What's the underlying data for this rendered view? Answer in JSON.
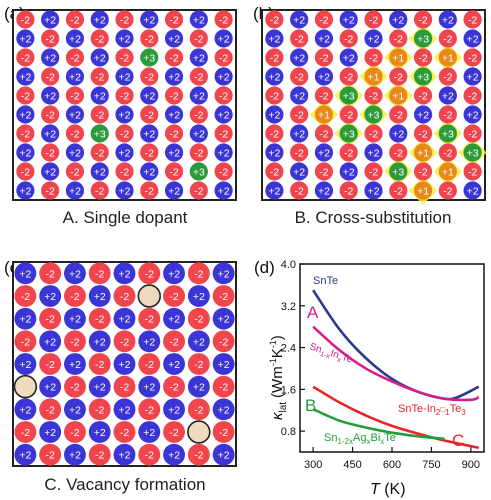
{
  "panels": {
    "a": {
      "tag": "(a)",
      "caption": "A. Single dopant",
      "rows": [
        [
          "-2",
          "+2",
          "-2",
          "+2",
          "-2",
          "+2",
          "-2",
          "+2",
          "-2"
        ],
        [
          "+2",
          "-2",
          "+2",
          "-2",
          "+2",
          "-2",
          "+2",
          "-2",
          "+2"
        ],
        [
          "-2",
          "+2",
          "-2",
          "+2",
          "-2",
          "+3",
          "-2",
          "+2",
          "-2"
        ],
        [
          "+2",
          "-2",
          "+2",
          "-2",
          "+2",
          "-2",
          "+2",
          "-2",
          "+2"
        ],
        [
          "-2",
          "+2",
          "-2",
          "+2",
          "-2",
          "+2",
          "-2",
          "+2",
          "-2"
        ],
        [
          "+2",
          "-2",
          "+2",
          "-2",
          "+2",
          "-2",
          "+2",
          "-2",
          "+2"
        ],
        [
          "-2",
          "+2",
          "-2",
          "+3",
          "-2",
          "+2",
          "-2",
          "+2",
          "-2"
        ],
        [
          "+2",
          "-2",
          "+2",
          "-2",
          "+2",
          "-2",
          "+2",
          "-2",
          "+2"
        ],
        [
          "-2",
          "+2",
          "-2",
          "+2",
          "-2",
          "+2",
          "-2",
          "+3",
          "-2"
        ],
        [
          "+2",
          "-2",
          "+2",
          "-2",
          "+2",
          "-2",
          "+2",
          "-2",
          "+2"
        ]
      ]
    },
    "b": {
      "tag": "(b)",
      "caption": "B. Cross-substitution",
      "rows": [
        [
          "-2",
          "+2",
          "-2",
          "+2",
          "-2",
          "+2",
          "-2",
          "+2",
          "-2"
        ],
        [
          "+2",
          "-2",
          "+2",
          "-2",
          "+2",
          "-2",
          "+3",
          "-2",
          "+2"
        ],
        [
          "-2",
          "+2",
          "-2",
          "+2",
          "-2",
          "+1",
          "-2",
          "+1",
          "-2"
        ],
        [
          "+2",
          "-2",
          "+2",
          "-2",
          "+1",
          "-2",
          "+3",
          "-2",
          "+2"
        ],
        [
          "-2",
          "+2",
          "-2",
          "+3",
          "-2",
          "+1",
          "-2",
          "+2",
          "-2"
        ],
        [
          "+2",
          "-2",
          "+1",
          "-2",
          "+3",
          "-2",
          "+2",
          "-2",
          "+2"
        ],
        [
          "-2",
          "+2",
          "-2",
          "+3",
          "-2",
          "+2",
          "-2",
          "+3",
          "-2"
        ],
        [
          "+2",
          "-2",
          "+2",
          "-2",
          "+2",
          "-2",
          "+1",
          "-2",
          "+3"
        ],
        [
          "-2",
          "+2",
          "-2",
          "+2",
          "-2",
          "+3",
          "-2",
          "+1",
          "-2"
        ],
        [
          "+2",
          "-2",
          "+2",
          "-2",
          "+2",
          "-2",
          "+1",
          "-2",
          "+2"
        ]
      ]
    },
    "c": {
      "tag": "(c)",
      "caption": "C. Vacancy formation",
      "rows": [
        [
          "+2",
          "-2",
          "+2",
          "-2",
          "+2",
          "-2",
          "+2",
          "-2",
          "+2"
        ],
        [
          "-2",
          "+2",
          "-2",
          "+2",
          "-2",
          "",
          "-2",
          "+2",
          "-2"
        ],
        [
          "+2",
          "-2",
          "+2",
          "-2",
          "+2",
          "-2",
          "+2",
          "-2",
          "+2"
        ],
        [
          "-2",
          "+2",
          "-2",
          "+2",
          "-2",
          "+2",
          "-2",
          "+2",
          "-2"
        ],
        [
          "+2",
          "-2",
          "+2",
          "-2",
          "+2",
          "-2",
          "+2",
          "-2",
          "+2"
        ],
        [
          "",
          "+2",
          "-2",
          "+2",
          "-2",
          "+2",
          "-2",
          "+2",
          "-2"
        ],
        [
          "+2",
          "-2",
          "+2",
          "-2",
          "+2",
          "-2",
          "+2",
          "-2",
          "+2"
        ],
        [
          "-2",
          "+2",
          "-2",
          "+2",
          "-2",
          "+2",
          "-2",
          "",
          "-2"
        ],
        [
          "+2",
          "-2",
          "+2",
          "-2",
          "+2",
          "-2",
          "+2",
          "-2",
          "+2"
        ]
      ]
    }
  },
  "plot": {
    "tag": "(d)",
    "ylabel_main": "κ",
    "ylabel_sub": "lat",
    "ylabel_unit": "(Wm",
    "ylabel_sup1": "-1",
    "ylabel_k": "K",
    "ylabel_sup2": "-1",
    "ylabel_close": ")",
    "xlabel_var": "T",
    "xlabel_unit": " (K)",
    "marker_a": "A",
    "marker_b": "B",
    "marker_c": "C"
  },
  "chart_data": {
    "type": "line",
    "xlim": [
      250,
      950
    ],
    "ylim": [
      0.4,
      4.0
    ],
    "x_ticks": [
      "300",
      "450",
      "600",
      "750",
      "900"
    ],
    "y_ticks": [
      "0.8",
      "1.6",
      "2.4",
      "3.2",
      "4.0"
    ],
    "series": [
      {
        "name": "SnTe",
        "color": "#2e3a8c",
        "x": [
          300,
          400,
          500,
          600,
          700,
          800,
          850,
          930
        ],
        "y": [
          3.5,
          2.75,
          2.2,
          1.8,
          1.55,
          1.42,
          1.45,
          1.65
        ]
      },
      {
        "name": "Sn1-xInxTe",
        "color": "#d61d8a",
        "x": [
          300,
          400,
          500,
          600,
          700,
          800,
          900,
          930
        ],
        "y": [
          2.8,
          2.35,
          2.0,
          1.75,
          1.55,
          1.42,
          1.4,
          1.45
        ]
      },
      {
        "name": "SnTe-In2□1Te3",
        "color": "#e8232a",
        "x": [
          300,
          400,
          500,
          600,
          700,
          800,
          930
        ],
        "y": [
          1.65,
          1.35,
          1.1,
          0.9,
          0.75,
          0.62,
          0.48
        ]
      },
      {
        "name": "Sn1-2xAgxBixTe",
        "color": "#1f9e3a",
        "x": [
          300,
          400,
          500,
          600,
          700,
          800
        ],
        "y": [
          1.22,
          1.0,
          0.87,
          0.77,
          0.7,
          0.65
        ]
      }
    ],
    "labels": {
      "snte": "SnTe",
      "in_main1": "Sn",
      "in_sub1": "1-x",
      "in_main2": "In",
      "in_sub2": "x",
      "in_main3": "Te",
      "in2_main1": "SnTe-In",
      "in2_sub1": "2",
      "in2_box": "□",
      "in2_sub2": "1",
      "in2_main2": "Te",
      "in2_sub3": "3",
      "ag_main1": "Sn",
      "ag_sub1": "1-2x",
      "ag_main2": "Ag",
      "ag_sub2": "x",
      "ag_main3": "Bi",
      "ag_sub3": "x",
      "ag_main4": "Te"
    }
  },
  "colors": {
    "cation_plus2": "#3b35d6",
    "anion_minus2": "#f0454c",
    "dopant_plus3": "#2a9a3a",
    "dopant_plus1": "#e88a1a",
    "vacancy": "#efd9bf",
    "highlight": "#f4ef3a"
  }
}
